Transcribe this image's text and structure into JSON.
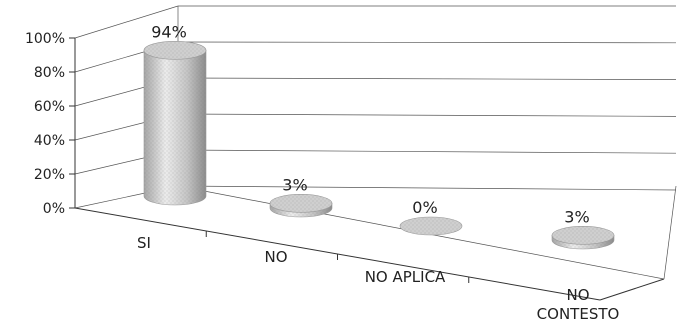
{
  "chart_data": {
    "type": "bar",
    "style": "3d-cylinder",
    "categories": [
      "SI",
      "NO",
      "NO APLICA",
      "NO CONTESTO"
    ],
    "values": [
      94,
      3,
      0,
      3
    ],
    "data_labels": [
      "94%",
      "3%",
      "0%",
      "3%"
    ],
    "y_ticks": [
      "0%",
      "20%",
      "40%",
      "60%",
      "80%",
      "100%"
    ],
    "ylim": [
      0,
      100
    ],
    "grid": true,
    "legend": "none",
    "title": "",
    "xlabel": "",
    "ylabel": "",
    "colors": {
      "bar": "#cfcfcf",
      "grid": "#555555",
      "text": "#222222"
    }
  }
}
